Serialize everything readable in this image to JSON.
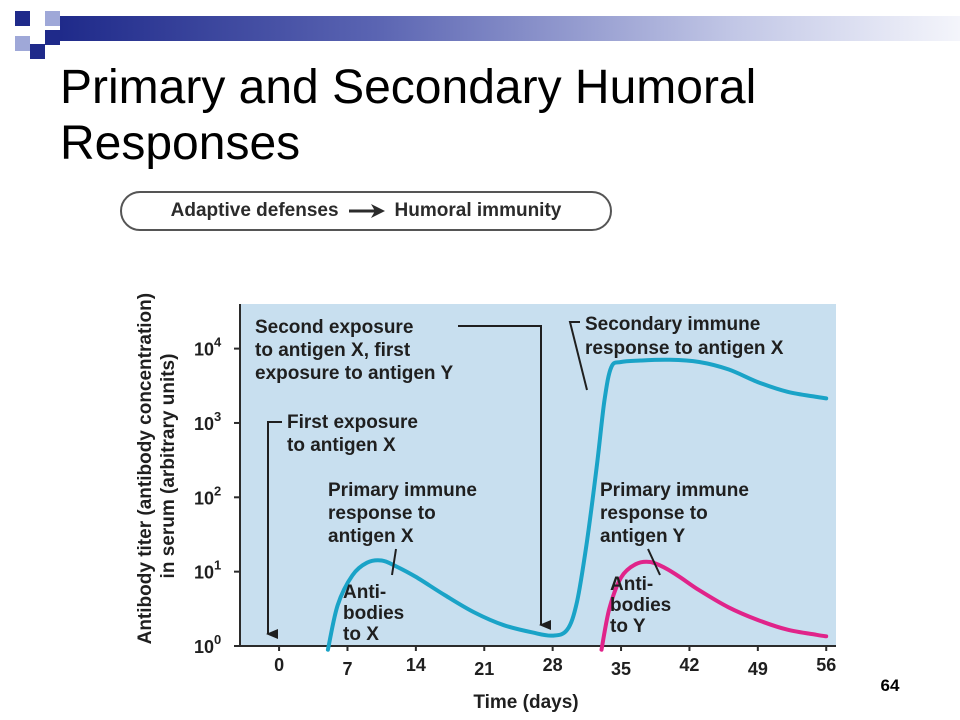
{
  "slide": {
    "title": "Primary and Secondary Humoral Responses",
    "page_number": "64"
  },
  "breadcrumb": {
    "from": "Adaptive defenses",
    "to": "Humoral immunity"
  },
  "colors": {
    "plot_background": "#c8dfef",
    "series_x": "#1aa3c7",
    "series_y": "#e0248a",
    "deco_navy": "#1f2a8a",
    "deco_periwinkle": "#9fa8d8"
  },
  "chart_data": {
    "type": "line",
    "xlabel": "Time (days)",
    "ylabel_lines": [
      "Antibody titer (antibody concentration)",
      "in serum (arbitrary units)"
    ],
    "y_scale": "log",
    "xlim": [
      -4,
      57
    ],
    "ylim_log10": [
      0,
      4.6
    ],
    "x_ticks": [
      0,
      7,
      14,
      21,
      28,
      35,
      42,
      49,
      56
    ],
    "y_ticks": [
      {
        "base": "10",
        "exp": "0",
        "log10": 0
      },
      {
        "base": "10",
        "exp": "1",
        "log10": 1
      },
      {
        "base": "10",
        "exp": "2",
        "log10": 2
      },
      {
        "base": "10",
        "exp": "3",
        "log10": 3
      },
      {
        "base": "10",
        "exp": "4",
        "log10": 4
      }
    ],
    "grid": false,
    "series": [
      {
        "key": "x",
        "color": "#1aa3c7",
        "points": [
          [
            5,
            -0.05
          ],
          [
            6,
            0.55
          ],
          [
            7.5,
            0.95
          ],
          [
            9,
            1.12
          ],
          [
            10.5,
            1.15
          ],
          [
            12,
            1.07
          ],
          [
            14,
            0.93
          ],
          [
            17,
            0.68
          ],
          [
            20,
            0.45
          ],
          [
            23,
            0.28
          ],
          [
            26,
            0.18
          ],
          [
            28,
            0.14
          ],
          [
            29.5,
            0.22
          ],
          [
            30.5,
            0.6
          ],
          [
            31.5,
            1.4
          ],
          [
            32.5,
            2.4
          ],
          [
            33.3,
            3.3
          ],
          [
            34,
            3.75
          ],
          [
            35,
            3.82
          ],
          [
            37,
            3.84
          ],
          [
            40,
            3.85
          ],
          [
            43,
            3.82
          ],
          [
            46,
            3.72
          ],
          [
            49,
            3.55
          ],
          [
            52,
            3.42
          ],
          [
            55,
            3.35
          ],
          [
            56,
            3.33
          ]
        ]
      },
      {
        "key": "y",
        "color": "#e0248a",
        "points": [
          [
            33,
            -0.05
          ],
          [
            33.8,
            0.5
          ],
          [
            35,
            0.92
          ],
          [
            36.5,
            1.1
          ],
          [
            38,
            1.13
          ],
          [
            39.5,
            1.05
          ],
          [
            41,
            0.93
          ],
          [
            43,
            0.75
          ],
          [
            46,
            0.52
          ],
          [
            49,
            0.35
          ],
          [
            52,
            0.22
          ],
          [
            55,
            0.15
          ],
          [
            56,
            0.13
          ]
        ]
      }
    ],
    "annotations": {
      "second_exposure": [
        "Second exposure",
        "to antigen X, first",
        "exposure to antigen Y"
      ],
      "secondary_response": [
        "Secondary immune",
        "response to antigen X"
      ],
      "first_exposure": [
        "First exposure",
        "to antigen X"
      ],
      "primary_response_x": [
        "Primary immune",
        "response to",
        "antigen X"
      ],
      "primary_response_y": [
        "Primary immune",
        "response to",
        "antigen Y"
      ],
      "antibodies_x": [
        "Anti-",
        "bodies",
        "to X"
      ],
      "antibodies_y": [
        "Anti-",
        "bodies",
        "to Y"
      ]
    }
  }
}
